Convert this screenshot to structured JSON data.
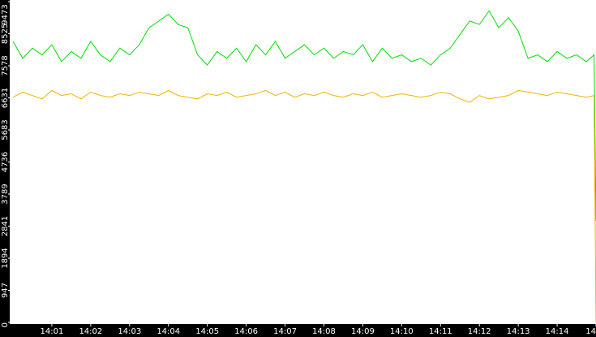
{
  "chart_data": {
    "type": "line",
    "x": [
      0,
      0.25,
      0.5,
      0.75,
      1,
      1.25,
      1.5,
      1.75,
      2,
      2.25,
      2.5,
      2.75,
      3,
      3.25,
      3.5,
      3.75,
      4,
      4.25,
      4.5,
      4.75,
      5,
      5.25,
      5.5,
      5.75,
      6,
      6.25,
      6.5,
      6.75,
      7,
      7.25,
      7.5,
      7.75,
      8,
      8.25,
      8.5,
      8.75,
      9,
      9.25,
      9.5,
      9.75,
      10,
      10.25,
      10.5,
      10.75,
      11,
      11.25,
      11.5,
      11.75,
      12,
      12.25,
      12.5,
      12.75,
      13,
      13.25,
      13.5,
      13.75,
      14,
      14.25,
      14.5,
      14.75,
      14.95,
      15
    ],
    "series": [
      {
        "color": "#00e000",
        "values": [
          8300,
          7800,
          8100,
          7900,
          8200,
          7700,
          8000,
          7800,
          8300,
          7900,
          7700,
          8100,
          7900,
          8200,
          8700,
          8900,
          9100,
          8800,
          8700,
          7900,
          7600,
          8000,
          7800,
          8100,
          7700,
          8200,
          7900,
          8300,
          7800,
          8000,
          8200,
          7900,
          8100,
          7800,
          8000,
          7900,
          8200,
          7700,
          8100,
          7800,
          7900,
          7700,
          7800,
          7600,
          7900,
          8100,
          8500,
          8900,
          8800,
          9200,
          8700,
          9000,
          8600,
          7800,
          7900,
          7700,
          8000,
          7800,
          7900,
          7700,
          7900,
          3000
        ]
      },
      {
        "color": "#f0b400",
        "values": [
          6650,
          6800,
          6700,
          6600,
          6850,
          6700,
          6750,
          6600,
          6800,
          6700,
          6650,
          6750,
          6700,
          6800,
          6750,
          6700,
          6850,
          6700,
          6650,
          6600,
          6750,
          6700,
          6800,
          6650,
          6700,
          6750,
          6850,
          6700,
          6800,
          6650,
          6750,
          6700,
          6800,
          6700,
          6650,
          6750,
          6700,
          6800,
          6650,
          6700,
          6750,
          6700,
          6650,
          6700,
          6800,
          6750,
          6600,
          6500,
          6700,
          6600,
          6650,
          6700,
          6850,
          6800,
          6750,
          6700,
          6800,
          6750,
          6700,
          6650,
          6700,
          0
        ]
      }
    ],
    "xlim": [
      0,
      15
    ],
    "xticks": [
      {
        "value": 1,
        "label": "14:01"
      },
      {
        "value": 2,
        "label": "14:02"
      },
      {
        "value": 3,
        "label": "14:03"
      },
      {
        "value": 4,
        "label": "14:04"
      },
      {
        "value": 5,
        "label": "14:05"
      },
      {
        "value": 6,
        "label": "14:06"
      },
      {
        "value": 7,
        "label": "14:07"
      },
      {
        "value": 8,
        "label": "14:08"
      },
      {
        "value": 9,
        "label": "14:09"
      },
      {
        "value": 10,
        "label": "14:10"
      },
      {
        "value": 11,
        "label": "14:11"
      },
      {
        "value": 12,
        "label": "14:12"
      },
      {
        "value": 13,
        "label": "14:13"
      },
      {
        "value": 14,
        "label": "14:14"
      },
      {
        "value": 15,
        "label": "14"
      }
    ],
    "ylim": [
      0,
      9473
    ],
    "yticks": [
      0,
      947,
      1894,
      2841,
      3789,
      4736,
      5683,
      6631,
      7578,
      8525,
      9473
    ]
  }
}
